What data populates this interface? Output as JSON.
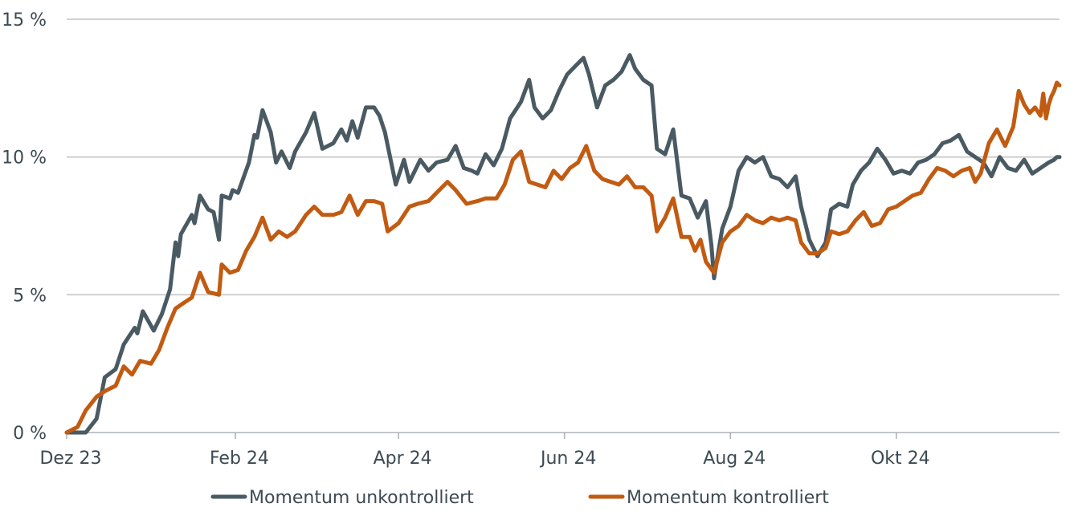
{
  "chart_data": {
    "type": "line",
    "title": "",
    "xlabel": "",
    "ylabel": "",
    "ylim": [
      0,
      15
    ],
    "y_ticks": [
      0,
      5,
      10,
      15
    ],
    "y_tick_labels": [
      "0 %",
      "5 %",
      "10 %",
      "15 %"
    ],
    "x_range": [
      "2023-12-01",
      "2024-11-30"
    ],
    "x_ticks": [
      "2023-12-01",
      "2024-02-01",
      "2024-04-01",
      "2024-06-01",
      "2024-08-01",
      "2024-10-01"
    ],
    "x_tick_labels": [
      "Dez 23",
      "Feb 24",
      "Apr 24",
      "Jun 24",
      "Aug 24",
      "Okt 24"
    ],
    "grid": "horizontal",
    "legend_position": "bottom",
    "series": [
      {
        "name": "Momentum unkontrolliert",
        "color": "#4a5a63",
        "points": [
          [
            "2023-12-01",
            0.0
          ],
          [
            "2023-12-08",
            -0.3
          ],
          [
            "2023-12-12",
            0.5
          ],
          [
            "2023-12-15",
            2.0
          ],
          [
            "2023-12-19",
            2.3
          ],
          [
            "2023-12-22",
            3.2
          ],
          [
            "2023-12-26",
            3.8
          ],
          [
            "2023-12-27",
            3.6
          ],
          [
            "2023-12-29",
            4.4
          ],
          [
            "2024-01-02",
            3.7
          ],
          [
            "2024-01-05",
            4.3
          ],
          [
            "2024-01-08",
            5.2
          ],
          [
            "2024-01-10",
            6.9
          ],
          [
            "2024-01-11",
            6.4
          ],
          [
            "2024-01-12",
            7.2
          ],
          [
            "2024-01-16",
            7.9
          ],
          [
            "2024-01-17",
            7.6
          ],
          [
            "2024-01-19",
            8.6
          ],
          [
            "2024-01-22",
            8.1
          ],
          [
            "2024-01-24",
            8.0
          ],
          [
            "2024-01-26",
            7.0
          ],
          [
            "2024-01-27",
            8.6
          ],
          [
            "2024-01-30",
            8.5
          ],
          [
            "2024-01-31",
            8.8
          ],
          [
            "2024-02-02",
            8.7
          ],
          [
            "2024-02-06",
            9.8
          ],
          [
            "2024-02-08",
            10.8
          ],
          [
            "2024-02-09",
            10.7
          ],
          [
            "2024-02-11",
            11.7
          ],
          [
            "2024-02-14",
            10.9
          ],
          [
            "2024-02-16",
            9.8
          ],
          [
            "2024-02-18",
            10.2
          ],
          [
            "2024-02-21",
            9.6
          ],
          [
            "2024-02-23",
            10.2
          ],
          [
            "2024-02-27",
            10.9
          ],
          [
            "2024-03-01",
            11.6
          ],
          [
            "2024-03-04",
            10.3
          ],
          [
            "2024-03-08",
            10.5
          ],
          [
            "2024-03-11",
            11.0
          ],
          [
            "2024-03-13",
            10.6
          ],
          [
            "2024-03-15",
            11.3
          ],
          [
            "2024-03-17",
            10.7
          ],
          [
            "2024-03-20",
            11.8
          ],
          [
            "2024-03-23",
            11.8
          ],
          [
            "2024-03-25",
            11.5
          ],
          [
            "2024-03-27",
            10.9
          ],
          [
            "2024-03-31",
            9.0
          ],
          [
            "2024-04-03",
            9.9
          ],
          [
            "2024-04-05",
            9.1
          ],
          [
            "2024-04-09",
            9.9
          ],
          [
            "2024-04-12",
            9.5
          ],
          [
            "2024-04-15",
            9.8
          ],
          [
            "2024-04-19",
            9.9
          ],
          [
            "2024-04-22",
            10.4
          ],
          [
            "2024-04-25",
            9.6
          ],
          [
            "2024-04-28",
            9.5
          ],
          [
            "2024-04-30",
            9.4
          ],
          [
            "2024-05-03",
            10.1
          ],
          [
            "2024-05-06",
            9.7
          ],
          [
            "2024-05-09",
            10.3
          ],
          [
            "2024-05-12",
            11.4
          ],
          [
            "2024-05-16",
            12.0
          ],
          [
            "2024-05-19",
            12.8
          ],
          [
            "2024-05-21",
            11.8
          ],
          [
            "2024-05-24",
            11.4
          ],
          [
            "2024-05-27",
            11.7
          ],
          [
            "2024-05-30",
            12.4
          ],
          [
            "2024-06-02",
            13.0
          ],
          [
            "2024-06-05",
            13.3
          ],
          [
            "2024-06-08",
            13.6
          ],
          [
            "2024-06-10",
            13.0
          ],
          [
            "2024-06-13",
            11.8
          ],
          [
            "2024-06-16",
            12.6
          ],
          [
            "2024-06-19",
            12.8
          ],
          [
            "2024-06-22",
            13.1
          ],
          [
            "2024-06-25",
            13.7
          ],
          [
            "2024-06-27",
            13.2
          ],
          [
            "2024-06-30",
            12.8
          ],
          [
            "2024-07-03",
            12.6
          ],
          [
            "2024-07-05",
            10.3
          ],
          [
            "2024-07-08",
            10.1
          ],
          [
            "2024-07-11",
            11.0
          ],
          [
            "2024-07-14",
            8.6
          ],
          [
            "2024-07-17",
            8.5
          ],
          [
            "2024-07-20",
            7.8
          ],
          [
            "2024-07-23",
            8.4
          ],
          [
            "2024-07-25",
            6.8
          ],
          [
            "2024-07-26",
            5.6
          ],
          [
            "2024-07-29",
            7.4
          ],
          [
            "2024-08-01",
            8.2
          ],
          [
            "2024-08-04",
            9.5
          ],
          [
            "2024-08-07",
            10.0
          ],
          [
            "2024-08-10",
            9.8
          ],
          [
            "2024-08-13",
            10.0
          ],
          [
            "2024-08-16",
            9.3
          ],
          [
            "2024-08-19",
            9.2
          ],
          [
            "2024-08-22",
            8.9
          ],
          [
            "2024-08-25",
            9.3
          ],
          [
            "2024-08-27",
            8.2
          ],
          [
            "2024-08-30",
            7.0
          ],
          [
            "2024-09-02",
            6.4
          ],
          [
            "2024-09-05",
            6.9
          ],
          [
            "2024-09-07",
            8.1
          ],
          [
            "2024-09-10",
            8.3
          ],
          [
            "2024-09-13",
            8.2
          ],
          [
            "2024-09-15",
            9.0
          ],
          [
            "2024-09-18",
            9.5
          ],
          [
            "2024-09-21",
            9.8
          ],
          [
            "2024-09-24",
            10.3
          ],
          [
            "2024-09-27",
            9.9
          ],
          [
            "2024-09-30",
            9.4
          ],
          [
            "2024-10-03",
            9.5
          ],
          [
            "2024-10-06",
            9.4
          ],
          [
            "2024-10-09",
            9.8
          ],
          [
            "2024-10-12",
            9.9
          ],
          [
            "2024-10-15",
            10.1
          ],
          [
            "2024-10-18",
            10.5
          ],
          [
            "2024-10-21",
            10.6
          ],
          [
            "2024-10-24",
            10.8
          ],
          [
            "2024-10-27",
            10.2
          ],
          [
            "2024-10-30",
            10.0
          ],
          [
            "2024-11-02",
            9.8
          ],
          [
            "2024-11-05",
            9.3
          ],
          [
            "2024-11-08",
            10.0
          ],
          [
            "2024-11-11",
            9.6
          ],
          [
            "2024-11-14",
            9.5
          ],
          [
            "2024-11-17",
            9.9
          ],
          [
            "2024-11-20",
            9.4
          ],
          [
            "2024-11-23",
            9.6
          ],
          [
            "2024-11-26",
            9.8
          ],
          [
            "2024-11-28",
            9.9
          ],
          [
            "2024-11-29",
            10.0
          ],
          [
            "2024-11-30",
            10.0
          ]
        ]
      },
      {
        "name": "Momentum kontrolliert",
        "color": "#c25b12",
        "points": [
          [
            "2023-12-01",
            0.0
          ],
          [
            "2023-12-05",
            0.2
          ],
          [
            "2023-12-08",
            0.8
          ],
          [
            "2023-12-12",
            1.3
          ],
          [
            "2023-12-15",
            1.5
          ],
          [
            "2023-12-19",
            1.7
          ],
          [
            "2023-12-22",
            2.4
          ],
          [
            "2023-12-25",
            2.1
          ],
          [
            "2023-12-28",
            2.6
          ],
          [
            "2024-01-01",
            2.5
          ],
          [
            "2024-01-04",
            3.0
          ],
          [
            "2024-01-07",
            3.8
          ],
          [
            "2024-01-10",
            4.5
          ],
          [
            "2024-01-13",
            4.7
          ],
          [
            "2024-01-16",
            4.9
          ],
          [
            "2024-01-19",
            5.8
          ],
          [
            "2024-01-22",
            5.1
          ],
          [
            "2024-01-26",
            5.0
          ],
          [
            "2024-01-27",
            6.1
          ],
          [
            "2024-01-30",
            5.8
          ],
          [
            "2024-02-02",
            5.9
          ],
          [
            "2024-02-05",
            6.6
          ],
          [
            "2024-02-08",
            7.1
          ],
          [
            "2024-02-11",
            7.8
          ],
          [
            "2024-02-14",
            7.0
          ],
          [
            "2024-02-17",
            7.3
          ],
          [
            "2024-02-20",
            7.1
          ],
          [
            "2024-02-23",
            7.3
          ],
          [
            "2024-02-27",
            7.9
          ],
          [
            "2024-03-01",
            8.2
          ],
          [
            "2024-03-04",
            7.9
          ],
          [
            "2024-03-08",
            7.9
          ],
          [
            "2024-03-11",
            8.0
          ],
          [
            "2024-03-14",
            8.6
          ],
          [
            "2024-03-17",
            7.9
          ],
          [
            "2024-03-20",
            8.4
          ],
          [
            "2024-03-23",
            8.4
          ],
          [
            "2024-03-26",
            8.3
          ],
          [
            "2024-03-28",
            7.3
          ],
          [
            "2024-04-01",
            7.6
          ],
          [
            "2024-04-05",
            8.2
          ],
          [
            "2024-04-08",
            8.3
          ],
          [
            "2024-04-12",
            8.4
          ],
          [
            "2024-04-15",
            8.7
          ],
          [
            "2024-04-19",
            9.1
          ],
          [
            "2024-04-22",
            8.8
          ],
          [
            "2024-04-26",
            8.3
          ],
          [
            "2024-04-30",
            8.4
          ],
          [
            "2024-05-03",
            8.5
          ],
          [
            "2024-05-07",
            8.5
          ],
          [
            "2024-05-10",
            9.0
          ],
          [
            "2024-05-13",
            9.9
          ],
          [
            "2024-05-16",
            10.2
          ],
          [
            "2024-05-19",
            9.1
          ],
          [
            "2024-05-22",
            9.0
          ],
          [
            "2024-05-25",
            8.9
          ],
          [
            "2024-05-28",
            9.5
          ],
          [
            "2024-05-31",
            9.2
          ],
          [
            "2024-06-03",
            9.6
          ],
          [
            "2024-06-06",
            9.8
          ],
          [
            "2024-06-09",
            10.4
          ],
          [
            "2024-06-12",
            9.5
          ],
          [
            "2024-06-15",
            9.2
          ],
          [
            "2024-06-18",
            9.1
          ],
          [
            "2024-06-21",
            9.0
          ],
          [
            "2024-06-24",
            9.3
          ],
          [
            "2024-06-27",
            8.9
          ],
          [
            "2024-06-30",
            8.9
          ],
          [
            "2024-07-03",
            8.6
          ],
          [
            "2024-07-05",
            7.3
          ],
          [
            "2024-07-08",
            7.8
          ],
          [
            "2024-07-11",
            8.5
          ],
          [
            "2024-07-14",
            7.1
          ],
          [
            "2024-07-17",
            7.1
          ],
          [
            "2024-07-19",
            6.6
          ],
          [
            "2024-07-21",
            7.0
          ],
          [
            "2024-07-23",
            6.2
          ],
          [
            "2024-07-26",
            5.8
          ],
          [
            "2024-07-29",
            6.9
          ],
          [
            "2024-08-01",
            7.3
          ],
          [
            "2024-08-04",
            7.5
          ],
          [
            "2024-08-07",
            7.9
          ],
          [
            "2024-08-10",
            7.7
          ],
          [
            "2024-08-13",
            7.6
          ],
          [
            "2024-08-16",
            7.8
          ],
          [
            "2024-08-19",
            7.7
          ],
          [
            "2024-08-22",
            7.8
          ],
          [
            "2024-08-25",
            7.7
          ],
          [
            "2024-08-27",
            6.9
          ],
          [
            "2024-08-30",
            6.5
          ],
          [
            "2024-09-02",
            6.5
          ],
          [
            "2024-09-05",
            6.7
          ],
          [
            "2024-09-07",
            7.3
          ],
          [
            "2024-09-10",
            7.2
          ],
          [
            "2024-09-13",
            7.3
          ],
          [
            "2024-09-16",
            7.7
          ],
          [
            "2024-09-19",
            8.0
          ],
          [
            "2024-09-22",
            7.5
          ],
          [
            "2024-09-25",
            7.6
          ],
          [
            "2024-09-28",
            8.1
          ],
          [
            "2024-10-01",
            8.2
          ],
          [
            "2024-10-04",
            8.4
          ],
          [
            "2024-10-07",
            8.6
          ],
          [
            "2024-10-10",
            8.7
          ],
          [
            "2024-10-13",
            9.2
          ],
          [
            "2024-10-16",
            9.6
          ],
          [
            "2024-10-19",
            9.5
          ],
          [
            "2024-10-22",
            9.3
          ],
          [
            "2024-10-25",
            9.5
          ],
          [
            "2024-10-28",
            9.6
          ],
          [
            "2024-10-30",
            9.1
          ],
          [
            "2024-11-01",
            9.4
          ],
          [
            "2024-11-04",
            10.5
          ],
          [
            "2024-11-07",
            11.0
          ],
          [
            "2024-11-10",
            10.4
          ],
          [
            "2024-11-13",
            11.1
          ],
          [
            "2024-11-15",
            12.4
          ],
          [
            "2024-11-17",
            11.9
          ],
          [
            "2024-11-19",
            11.6
          ],
          [
            "2024-11-21",
            11.8
          ],
          [
            "2024-11-23",
            11.5
          ],
          [
            "2024-11-24",
            12.3
          ],
          [
            "2024-11-25",
            11.4
          ],
          [
            "2024-11-26",
            11.9
          ],
          [
            "2024-11-27",
            12.2
          ],
          [
            "2024-11-28",
            12.4
          ],
          [
            "2024-11-29",
            12.7
          ],
          [
            "2024-11-30",
            12.6
          ]
        ]
      }
    ]
  }
}
